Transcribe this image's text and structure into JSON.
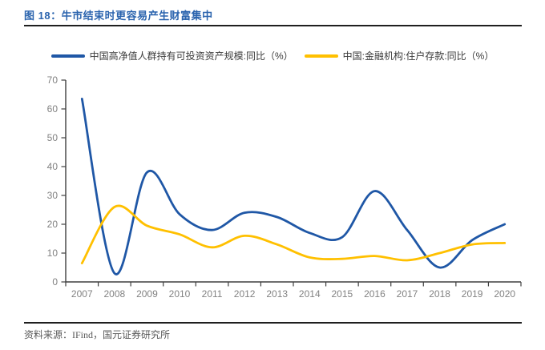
{
  "title": {
    "label": "图 18：牛市结束时更容易产生财富集中"
  },
  "legend": [
    {
      "label": "中国高净值人群持有可投资资产规模:同比（%）",
      "color": "#1F57A6"
    },
    {
      "label": "中国:金融机构:住户存款:同比（%）",
      "color": "#FFC000"
    }
  ],
  "footer": {
    "source_label": "资料来源：",
    "source_text": "IFind，国元证券研究所"
  },
  "colors": {
    "title_accent": "#2B64AE",
    "divider": "#1F1F1F",
    "axis_line": "#3F3F3F",
    "tick_label": "#828282",
    "source_text": "#595959",
    "series_blue": "#1F57A6",
    "series_gold": "#FFC000"
  },
  "chart_data": {
    "type": "line",
    "title": "图 18：牛市结束时更容易产生财富集中",
    "categories": [
      "2007",
      "2008",
      "2009",
      "2010",
      "2011",
      "2012",
      "2013",
      "2014",
      "2015",
      "2016",
      "2017",
      "2018",
      "2019",
      "2020"
    ],
    "series": [
      {
        "name": "中国高净值人群持有可投资资产规模:同比（%）",
        "color": "#1F57A6",
        "values": [
          63.5,
          3,
          38,
          23.5,
          18,
          24,
          22.5,
          17,
          15.5,
          31.5,
          18,
          5,
          14.5,
          20
        ]
      },
      {
        "name": "中国:金融机构:住户存款:同比（%）",
        "color": "#FFC000",
        "values": [
          6.5,
          26,
          19.5,
          16.5,
          12,
          16,
          13,
          8.5,
          8,
          9,
          7.5,
          10,
          13,
          13.5
        ]
      }
    ],
    "xlabel": "",
    "ylabel": "",
    "ylim": [
      0,
      70
    ],
    "ytick_step": 10,
    "grid": false,
    "legend_position": "top",
    "line_style": "smooth",
    "source": "资料来源：IFind，国元证券研究所"
  }
}
